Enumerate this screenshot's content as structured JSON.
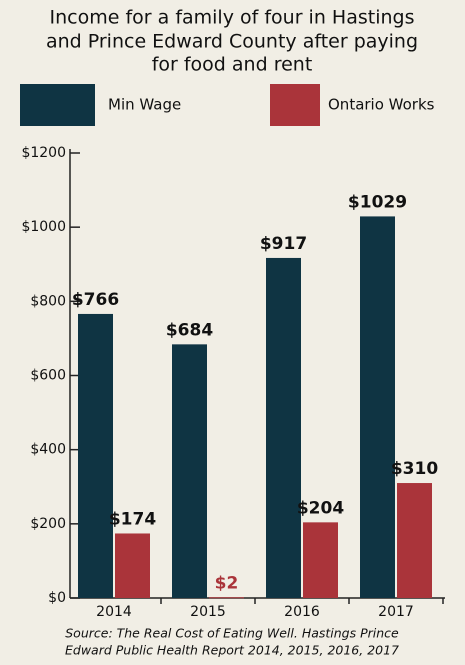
{
  "chart_data": {
    "type": "bar",
    "title": [
      "Income for a family of four in Hastings",
      "and Prince Edward County after paying",
      "for food and rent"
    ],
    "categories": [
      "2014",
      "2015",
      "2016",
      "2017"
    ],
    "series": [
      {
        "name": "Min Wage",
        "color": "#0f3443",
        "values": [
          766,
          684,
          917,
          1029
        ],
        "value_labels": [
          "$766",
          "$684",
          "$917",
          "$1029"
        ]
      },
      {
        "name": "Ontario Works",
        "color": "#aa343a",
        "values": [
          174,
          2,
          204,
          310
        ],
        "value_labels": [
          "$174",
          "$2",
          "$204",
          "$310"
        ]
      }
    ],
    "ylim": [
      0,
      1200
    ],
    "yticks": [
      {
        "value": 0,
        "label": "$0"
      },
      {
        "value": 200,
        "label": "$200"
      },
      {
        "value": 400,
        "label": "$400"
      },
      {
        "value": 600,
        "label": "$600"
      },
      {
        "value": 800,
        "label": "$800"
      },
      {
        "value": 1000,
        "label": "$1000"
      },
      {
        "value": 1200,
        "label": "$1200"
      }
    ],
    "source": [
      "Source: The Real Cost of Eating Well. Hastings Prince",
      "Edward Public Health Report 2014, 2015, 2016, 2017"
    ]
  }
}
